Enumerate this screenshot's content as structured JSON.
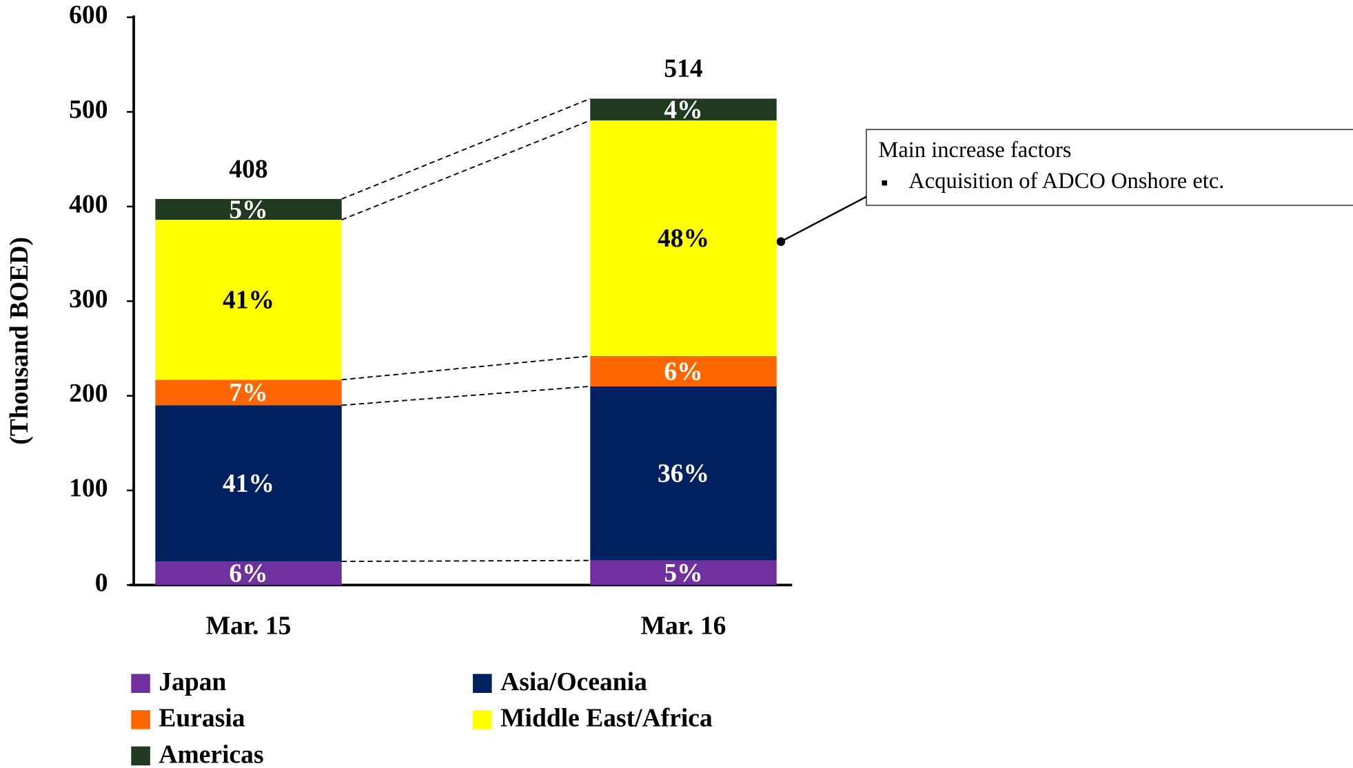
{
  "chart_data": {
    "type": "stacked_bar",
    "y_label": "(Thousand BOED)",
    "categories": [
      "Mar. 15",
      "Mar. 16"
    ],
    "series": [
      {
        "name": "Japan",
        "color": "#7030a0",
        "label_color": "#ffffff",
        "values": [
          25,
          26
        ],
        "labels": [
          "6%",
          "5%"
        ]
      },
      {
        "name": "Asia/Oceania",
        "color": "#002060",
        "label_color": "#ffffff",
        "values": [
          165,
          184
        ],
        "labels": [
          "41%",
          "36%"
        ]
      },
      {
        "name": "Eurasia",
        "color": "#ff6600",
        "label_color": "#ffffff",
        "values": [
          27,
          32
        ],
        "labels": [
          "7%",
          "6%"
        ]
      },
      {
        "name": "Middle East/Africa",
        "color": "#ffff00",
        "label_color": "#000000",
        "values": [
          169,
          249
        ],
        "labels": [
          "41%",
          "48%"
        ]
      },
      {
        "name": "Americas",
        "color": "#1f3a1f",
        "label_color": "#ffffff",
        "values": [
          22,
          23
        ],
        "labels": [
          "5%",
          "4%"
        ]
      }
    ],
    "totals": [
      408,
      514
    ],
    "ylim": [
      0,
      600
    ],
    "yticks": [
      0,
      100,
      200,
      300,
      400,
      500,
      600
    ],
    "annotation": {
      "title": "Main increase factors",
      "items": [
        "Acquisition of ADCO Onshore etc."
      ]
    }
  }
}
